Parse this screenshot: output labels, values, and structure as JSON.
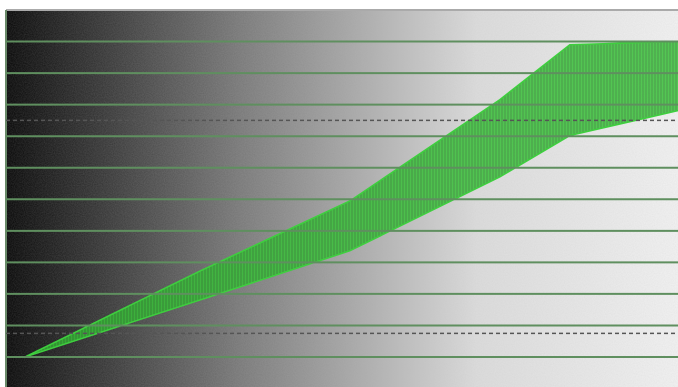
{
  "chart_data": {
    "type": "waveform",
    "xlim": [
      0,
      100
    ],
    "ylim": [
      -9.5,
      110
    ],
    "gridlines": [
      0,
      10,
      20,
      30,
      40,
      50,
      60,
      70,
      80,
      90,
      100
    ],
    "reference_lines": [
      7.5,
      75
    ],
    "x": [
      2.8,
      28.9,
      51.2,
      73.5,
      83.9,
      100
    ],
    "upper": [
      0,
      27.3,
      49.5,
      81.6,
      99.0,
      100
    ],
    "lower": [
      0,
      18.1,
      33.7,
      57.1,
      70.2,
      78.1
    ],
    "color": "#3ecf3e",
    "grid_color": "#5f8f5f",
    "reference_color": "#555555"
  }
}
